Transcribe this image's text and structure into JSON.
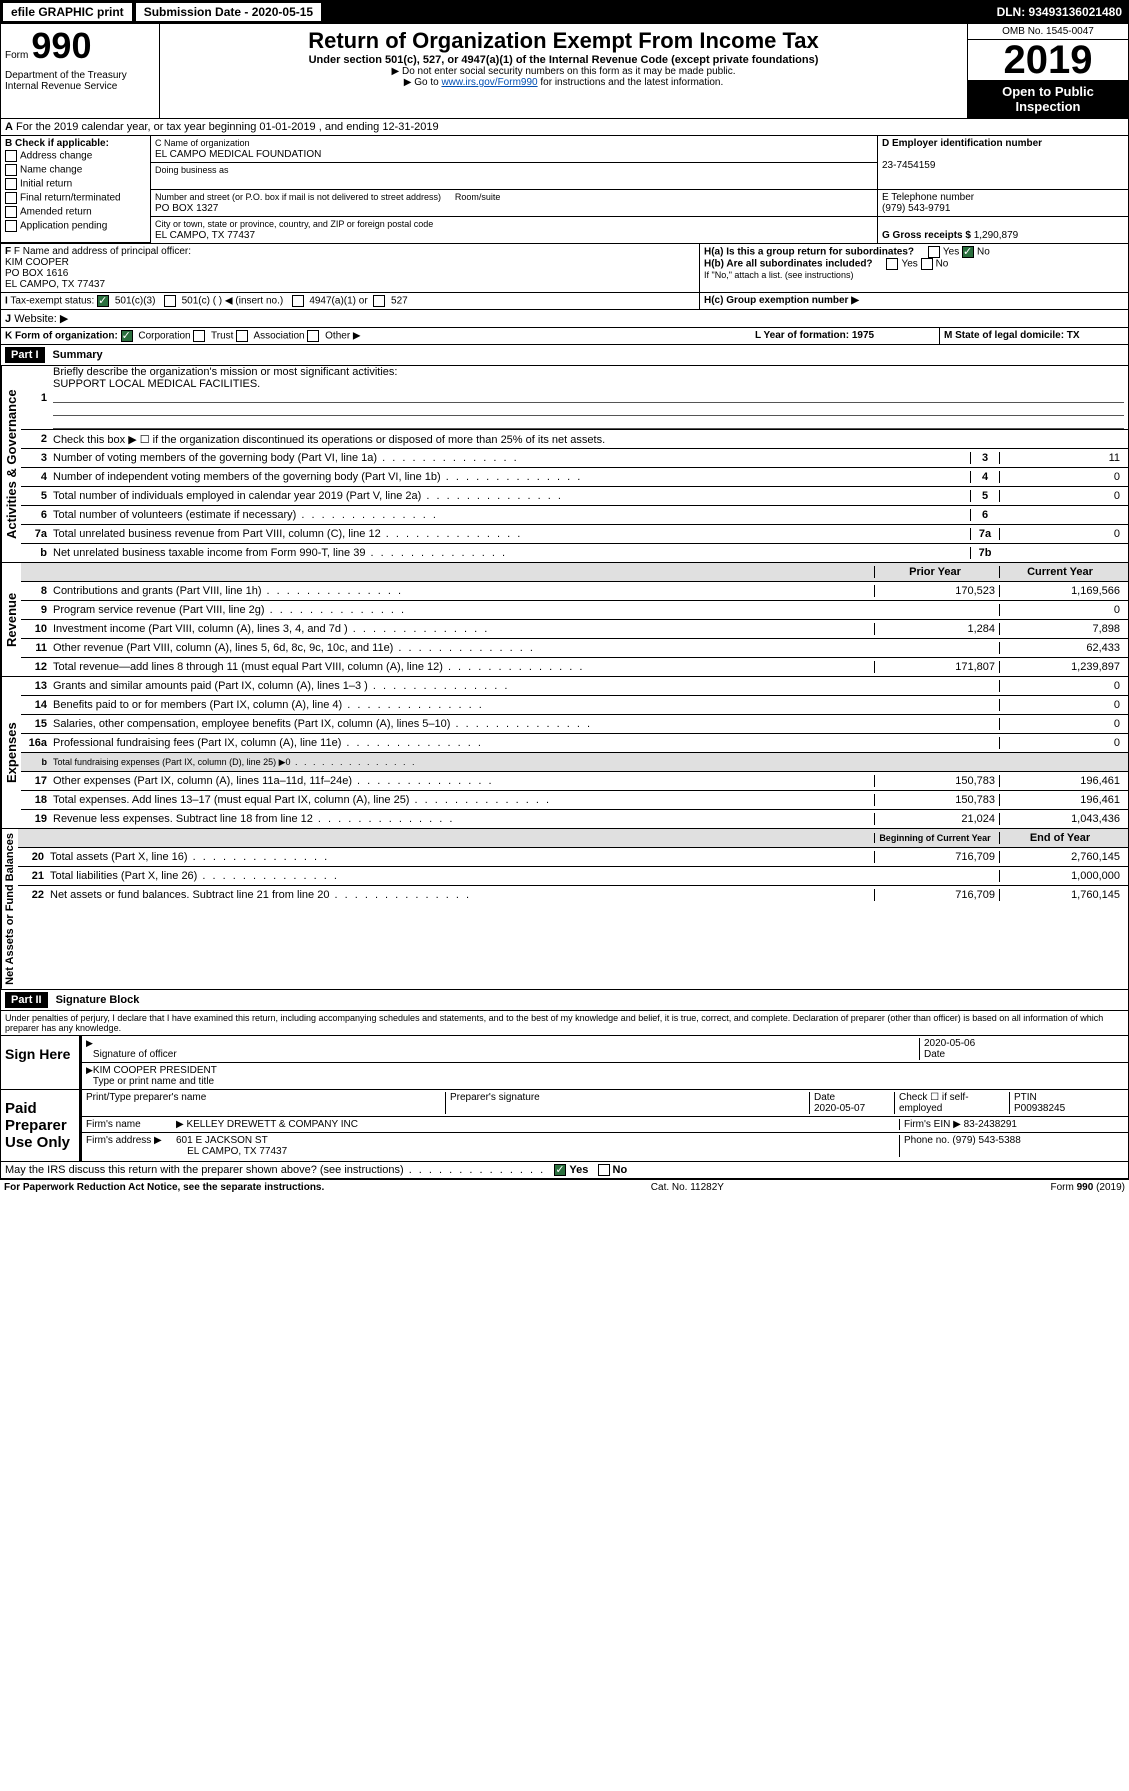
{
  "topbar": {
    "efile": "efile GRAPHIC print",
    "sub_label": "Submission Date - 2020-05-15",
    "dln": "DLN: 93493136021480"
  },
  "form": {
    "prefix": "Form",
    "number": "990",
    "dept": "Department of the Treasury\nInternal Revenue Service"
  },
  "title": {
    "h1": "Return of Organization Exempt From Income Tax",
    "sub1": "Under section 501(c), 527, or 4947(a)(1) of the Internal Revenue Code (except private foundations)",
    "sub2": "▶ Do not enter social security numbers on this form as it may be made public.",
    "sub3_pre": "▶ Go to ",
    "sub3_link": "www.irs.gov/Form990",
    "sub3_post": " for instructions and the latest information."
  },
  "omb": {
    "line": "OMB No. 1545-0047",
    "year": "2019",
    "inspect": "Open to Public Inspection"
  },
  "period": {
    "label": "For the 2019 calendar year, or tax year beginning 01-01-2019 , and ending 12-31-2019",
    "prefix": "A"
  },
  "boxB": {
    "hdr": "B Check if applicable:",
    "opts": [
      "Address change",
      "Name change",
      "Initial return",
      "Final return/terminated",
      "Amended return",
      "Application pending"
    ]
  },
  "entity": {
    "c_label": "C Name of organization",
    "c_val": "EL CAMPO MEDICAL FOUNDATION",
    "dba": "Doing business as",
    "addr_label": "Number and street (or P.O. box if mail is not delivered to street address)",
    "room": "Room/suite",
    "addr_val": "PO BOX 1327",
    "city_label": "City or town, state or province, country, and ZIP or foreign postal code",
    "city_val": "EL CAMPO, TX  77437",
    "d_label": "D Employer identification number",
    "d_val": "23-7454159",
    "e_label": "E Telephone number",
    "e_val": "(979) 543-9791",
    "g_label": "G Gross receipts $",
    "g_val": "1,290,879"
  },
  "FH": {
    "f_label": "F Name and address of principal officer:",
    "f_name": "KIM COOPER",
    "f_addr1": "PO BOX 1616",
    "f_addr2": "EL CAMPO, TX  77437",
    "ha": "H(a)  Is this a group return for subordinates?",
    "ha_yes": "Yes",
    "ha_no": "No",
    "hb": "H(b)  Are all subordinates included?",
    "hb_note": "If \"No,\" attach a list. (see instructions)",
    "hc": "H(c)  Group exemption number ▶"
  },
  "I": {
    "label": "Tax-exempt status:",
    "o1": "501(c)(3)",
    "o2": "501(c) (  ) ◀ (insert no.)",
    "o3": "4947(a)(1) or",
    "o4": "527"
  },
  "J": {
    "label": "Website: ▶"
  },
  "K": {
    "label": "K Form of organization:",
    "o1": "Corporation",
    "o2": "Trust",
    "o3": "Association",
    "o4": "Other ▶",
    "L": "L Year of formation: 1975",
    "M": "M State of legal domicile: TX"
  },
  "part1": {
    "num": "Part I",
    "title": "Summary",
    "q1": "Briefly describe the organization's mission or most significant activities:",
    "q1_val": "SUPPORT LOCAL MEDICAL FACILITIES.",
    "q2": "Check this box ▶ ☐ if the organization discontinued its operations or disposed of more than 25% of its net assets.",
    "rows": [
      {
        "n": "3",
        "d": "Number of voting members of the governing body (Part VI, line 1a)",
        "box": "3",
        "v": "11"
      },
      {
        "n": "4",
        "d": "Number of independent voting members of the governing body (Part VI, line 1b)",
        "box": "4",
        "v": "0"
      },
      {
        "n": "5",
        "d": "Total number of individuals employed in calendar year 2019 (Part V, line 2a)",
        "box": "5",
        "v": "0"
      },
      {
        "n": "6",
        "d": "Total number of volunteers (estimate if necessary)",
        "box": "6",
        "v": ""
      },
      {
        "n": "7a",
        "d": "Total unrelated business revenue from Part VIII, column (C), line 12",
        "box": "7a",
        "v": "0"
      },
      {
        "n": "b",
        "d": "Net unrelated business taxable income from Form 990-T, line 39",
        "box": "7b",
        "v": ""
      }
    ],
    "cols": {
      "prior": "Prior Year",
      "curr": "Current Year"
    },
    "revenue": [
      {
        "n": "8",
        "d": "Contributions and grants (Part VIII, line 1h)",
        "p": "170,523",
        "c": "1,169,566"
      },
      {
        "n": "9",
        "d": "Program service revenue (Part VIII, line 2g)",
        "p": "",
        "c": "0"
      },
      {
        "n": "10",
        "d": "Investment income (Part VIII, column (A), lines 3, 4, and 7d )",
        "p": "1,284",
        "c": "7,898"
      },
      {
        "n": "11",
        "d": "Other revenue (Part VIII, column (A), lines 5, 6d, 8c, 9c, 10c, and 11e)",
        "p": "",
        "c": "62,433"
      },
      {
        "n": "12",
        "d": "Total revenue—add lines 8 through 11 (must equal Part VIII, column (A), line 12)",
        "p": "171,807",
        "c": "1,239,897"
      }
    ],
    "expenses": [
      {
        "n": "13",
        "d": "Grants and similar amounts paid (Part IX, column (A), lines 1–3 )",
        "p": "",
        "c": "0"
      },
      {
        "n": "14",
        "d": "Benefits paid to or for members (Part IX, column (A), line 4)",
        "p": "",
        "c": "0"
      },
      {
        "n": "15",
        "d": "Salaries, other compensation, employee benefits (Part IX, column (A), lines 5–10)",
        "p": "",
        "c": "0"
      },
      {
        "n": "16a",
        "d": "Professional fundraising fees (Part IX, column (A), line 11e)",
        "p": "",
        "c": "0"
      },
      {
        "n": "b",
        "d": "Total fundraising expenses (Part IX, column (D), line 25) ▶0",
        "p": "",
        "c": "",
        "shade": true,
        "small": true
      },
      {
        "n": "17",
        "d": "Other expenses (Part IX, column (A), lines 11a–11d, 11f–24e)",
        "p": "150,783",
        "c": "196,461"
      },
      {
        "n": "18",
        "d": "Total expenses. Add lines 13–17 (must equal Part IX, column (A), line 25)",
        "p": "150,783",
        "c": "196,461"
      },
      {
        "n": "19",
        "d": "Revenue less expenses. Subtract line 18 from line 12",
        "p": "21,024",
        "c": "1,043,436"
      }
    ],
    "netcols": {
      "b": "Beginning of Current Year",
      "e": "End of Year"
    },
    "net": [
      {
        "n": "20",
        "d": "Total assets (Part X, line 16)",
        "p": "716,709",
        "c": "2,760,145"
      },
      {
        "n": "21",
        "d": "Total liabilities (Part X, line 26)",
        "p": "",
        "c": "1,000,000"
      },
      {
        "n": "22",
        "d": "Net assets or fund balances. Subtract line 21 from line 20",
        "p": "716,709",
        "c": "1,760,145"
      }
    ],
    "sidelabels": {
      "act": "Activities & Governance",
      "rev": "Revenue",
      "exp": "Expenses",
      "net": "Net Assets or\nFund Balances"
    }
  },
  "part2": {
    "num": "Part II",
    "title": "Signature Block",
    "jurat": "Under penalties of perjury, I declare that I have examined this return, including accompanying schedules and statements, and to the best of my knowledge and belief, it is true, correct, and complete. Declaration of preparer (other than officer) is based on all information of which preparer has any knowledge."
  },
  "sign": {
    "label": "Sign Here",
    "sig_off": "Signature of officer",
    "date": "2020-05-06",
    "date_lbl": "Date",
    "name": "KIM COOPER PRESIDENT",
    "name_lbl": "Type or print name and title"
  },
  "paid": {
    "label": "Paid Preparer Use Only",
    "h1": "Print/Type preparer's name",
    "h2": "Preparer's signature",
    "h3": "Date",
    "h3v": "2020-05-07",
    "h4": "Check ☐ if self-employed",
    "h5": "PTIN",
    "h5v": "P00938245",
    "firm_lbl": "Firm's name",
    "firm_val": "▶ KELLEY DREWETT & COMPANY INC",
    "ein_lbl": "Firm's EIN ▶",
    "ein_val": "83-2438291",
    "addr_lbl": "Firm's address ▶",
    "addr_val": "601 E JACKSON ST",
    "addr_val2": "EL CAMPO, TX  77437",
    "phone_lbl": "Phone no.",
    "phone_val": "(979) 543-5388"
  },
  "discuss": {
    "q": "May the IRS discuss this return with the preparer shown above? (see instructions)",
    "yes": "Yes",
    "no": "No"
  },
  "footer": {
    "left": "For Paperwork Reduction Act Notice, see the separate instructions.",
    "mid": "Cat. No. 11282Y",
    "right": "Form 990 (2019)"
  }
}
